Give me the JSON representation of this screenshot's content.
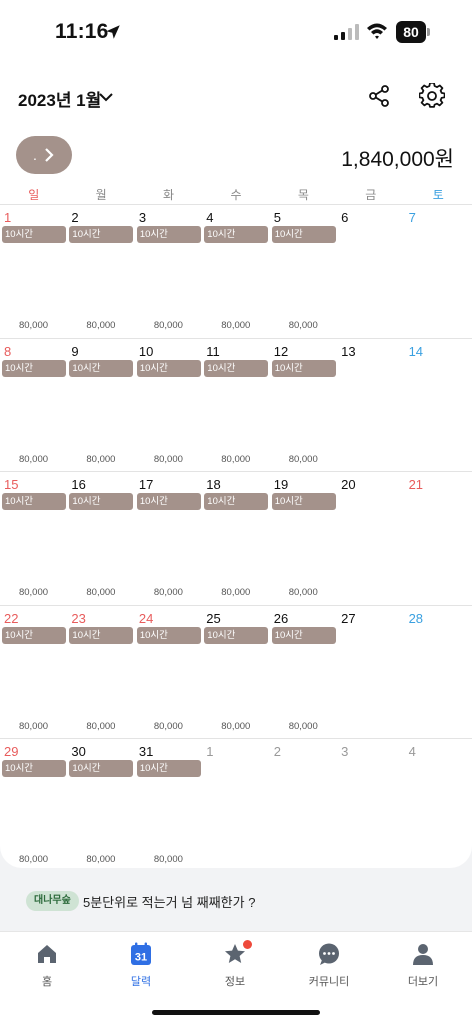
{
  "status_bar": {
    "time": "11:16",
    "battery": "80"
  },
  "header": {
    "month_title": "2023년 1월",
    "total": "1,840,000원",
    "pill_dot": "."
  },
  "weekdays": [
    "일",
    "월",
    "화",
    "수",
    "목",
    "금",
    "토"
  ],
  "weeks": [
    [
      {
        "day": "1",
        "color": "red",
        "hours": "10시간",
        "amount": "80,000"
      },
      {
        "day": "2",
        "color": "",
        "hours": "10시간",
        "amount": "80,000"
      },
      {
        "day": "3",
        "color": "",
        "hours": "10시간",
        "amount": "80,000"
      },
      {
        "day": "4",
        "color": "",
        "hours": "10시간",
        "amount": "80,000"
      },
      {
        "day": "5",
        "color": "",
        "hours": "10시간",
        "amount": "80,000"
      },
      {
        "day": "6",
        "color": "",
        "hours": "",
        "amount": ""
      },
      {
        "day": "7",
        "color": "blue",
        "hours": "",
        "amount": ""
      }
    ],
    [
      {
        "day": "8",
        "color": "red",
        "hours": "10시간",
        "amount": "80,000"
      },
      {
        "day": "9",
        "color": "",
        "hours": "10시간",
        "amount": "80,000"
      },
      {
        "day": "10",
        "color": "",
        "hours": "10시간",
        "amount": "80,000"
      },
      {
        "day": "11",
        "color": "",
        "hours": "10시간",
        "amount": "80,000"
      },
      {
        "day": "12",
        "color": "",
        "hours": "10시간",
        "amount": "80,000"
      },
      {
        "day": "13",
        "color": "",
        "hours": "",
        "amount": ""
      },
      {
        "day": "14",
        "color": "blue",
        "hours": "",
        "amount": ""
      }
    ],
    [
      {
        "day": "15",
        "color": "red",
        "hours": "10시간",
        "amount": "80,000"
      },
      {
        "day": "16",
        "color": "",
        "hours": "10시간",
        "amount": "80,000"
      },
      {
        "day": "17",
        "color": "",
        "hours": "10시간",
        "amount": "80,000"
      },
      {
        "day": "18",
        "color": "",
        "hours": "10시간",
        "amount": "80,000"
      },
      {
        "day": "19",
        "color": "",
        "hours": "10시간",
        "amount": "80,000"
      },
      {
        "day": "20",
        "color": "",
        "hours": "",
        "amount": ""
      },
      {
        "day": "21",
        "color": "red",
        "hours": "",
        "amount": ""
      }
    ],
    [
      {
        "day": "22",
        "color": "red",
        "hours": "10시간",
        "amount": "80,000"
      },
      {
        "day": "23",
        "color": "red",
        "hours": "10시간",
        "amount": "80,000"
      },
      {
        "day": "24",
        "color": "red",
        "hours": "10시간",
        "amount": "80,000"
      },
      {
        "day": "25",
        "color": "",
        "hours": "10시간",
        "amount": "80,000"
      },
      {
        "day": "26",
        "color": "",
        "hours": "10시간",
        "amount": "80,000"
      },
      {
        "day": "27",
        "color": "",
        "hours": "",
        "amount": ""
      },
      {
        "day": "28",
        "color": "blue",
        "hours": "",
        "amount": ""
      }
    ],
    [
      {
        "day": "29",
        "color": "red",
        "hours": "10시간",
        "amount": "80,000"
      },
      {
        "day": "30",
        "color": "",
        "hours": "10시간",
        "amount": "80,000"
      },
      {
        "day": "31",
        "color": "",
        "hours": "10시간",
        "amount": "80,000"
      },
      {
        "day": "1",
        "color": "gray",
        "hours": "",
        "amount": ""
      },
      {
        "day": "2",
        "color": "gray",
        "hours": "",
        "amount": ""
      },
      {
        "day": "3",
        "color": "gray",
        "hours": "",
        "amount": ""
      },
      {
        "day": "4",
        "color": "gray",
        "hours": "",
        "amount": ""
      }
    ]
  ],
  "tip": {
    "badge": "대나무숲",
    "text": "5분단위로 적는거 넘 째째한가 ?"
  },
  "tabs": [
    {
      "label": "홈",
      "icon": "home-icon"
    },
    {
      "label": "달력",
      "icon": "calendar-icon",
      "active": true,
      "calendar_num": "31"
    },
    {
      "label": "정보",
      "icon": "star-icon",
      "badge": true
    },
    {
      "label": "커뮤니티",
      "icon": "chat-icon"
    },
    {
      "label": "더보기",
      "icon": "person-icon"
    }
  ],
  "colors": {
    "accent": "#2f6fe4",
    "chip": "#a4928b",
    "sunday": "#e85c5c",
    "saturday": "#3aa0e0"
  }
}
